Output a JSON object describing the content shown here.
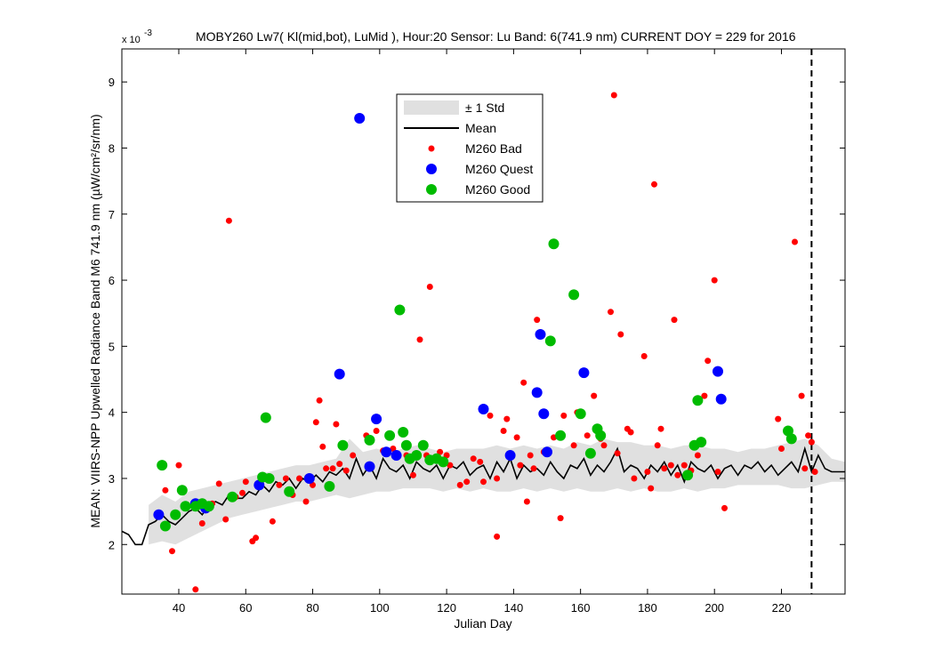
{
  "chart_data": {
    "type": "scatter",
    "title": "MOBY260   Lw7( Kl(mid,bot), LuMid ),   Hour:20 Sensor: Lu Band: 6(741.9 nm)   CURRENT DOY = 229 for 2016",
    "xlabel": "Julian Day",
    "ylabel": "MEAN: VIIRS-NPP Upwelled Radiance Band M6 741.9 nm (µW/cm²/sr/nm)",
    "y_exponent_label": "x 10",
    "y_exponent_power": "-3",
    "xlim": [
      23,
      239
    ],
    "ylim": [
      1.25,
      9.5
    ],
    "xticks": [
      40,
      60,
      80,
      100,
      120,
      140,
      160,
      180,
      200,
      220
    ],
    "yticks": [
      2,
      3,
      4,
      5,
      6,
      7,
      8,
      9
    ],
    "current_doy": 229,
    "grid": false,
    "legend_position": "top-center",
    "legend": {
      "std": "± 1 Std",
      "mean": "Mean",
      "bad": "M260 Bad",
      "quest": "M260 Quest",
      "good": "M260 Good"
    },
    "colors": {
      "bad": "#ff0000",
      "quest": "#0000ff",
      "good": "#00bb00",
      "mean": "#000000",
      "std": "#e0e0e0"
    },
    "mean": {
      "x": [
        23,
        25,
        27,
        29,
        31,
        33,
        35,
        37,
        39,
        41,
        43,
        45,
        47,
        49,
        51,
        53,
        55,
        57,
        59,
        61,
        63,
        65,
        67,
        69,
        71,
        73,
        75,
        77,
        79,
        81,
        83,
        85,
        87,
        89,
        91,
        93,
        95,
        97,
        99,
        101,
        103,
        105,
        107,
        109,
        111,
        113,
        115,
        117,
        119,
        121,
        123,
        125,
        127,
        129,
        131,
        133,
        135,
        137,
        139,
        141,
        143,
        145,
        147,
        149,
        151,
        153,
        155,
        157,
        159,
        161,
        163,
        165,
        167,
        169,
        171,
        173,
        175,
        177,
        179,
        181,
        183,
        185,
        187,
        189,
        191,
        193,
        195,
        197,
        199,
        201,
        203,
        205,
        207,
        209,
        211,
        213,
        215,
        217,
        219,
        221,
        223,
        225,
        227,
        229,
        231,
        233,
        235,
        237,
        239
      ],
      "y": [
        2.2,
        2.15,
        2.0,
        2.0,
        2.3,
        2.35,
        2.45,
        2.35,
        2.3,
        2.4,
        2.5,
        2.55,
        2.45,
        2.6,
        2.65,
        2.6,
        2.75,
        2.7,
        2.7,
        2.8,
        2.75,
        2.9,
        2.8,
        2.95,
        2.9,
        3.0,
        2.85,
        3.0,
        2.95,
        3.05,
        2.95,
        3.1,
        3.05,
        3.15,
        3.0,
        3.3,
        3.05,
        3.2,
        3.0,
        3.3,
        3.15,
        3.1,
        3.2,
        3.0,
        3.25,
        3.15,
        3.1,
        3.2,
        3.0,
        3.2,
        3.15,
        3.25,
        3.05,
        3.15,
        3.2,
        3.0,
        3.25,
        3.1,
        3.3,
        3.0,
        3.2,
        3.1,
        3.15,
        3.05,
        3.25,
        3.1,
        3.0,
        3.2,
        3.15,
        3.3,
        3.05,
        3.2,
        3.1,
        3.25,
        3.45,
        3.1,
        3.2,
        3.15,
        3.0,
        3.2,
        3.1,
        3.25,
        3.05,
        3.2,
        2.95,
        3.25,
        3.15,
        3.1,
        3.2,
        3.0,
        3.15,
        3.2,
        3.05,
        3.2,
        3.15,
        3.25,
        3.1,
        3.2,
        3.05,
        3.15,
        3.25,
        3.1,
        3.45,
        3.1,
        3.35,
        3.15,
        3.1,
        3.1,
        3.1
      ]
    },
    "std_band": {
      "x": [
        31,
        35,
        39,
        43,
        47,
        51,
        55,
        59,
        63,
        67,
        71,
        75,
        79,
        83,
        87,
        91,
        95,
        99,
        103,
        107,
        111,
        115,
        119,
        123,
        127,
        131,
        135,
        139,
        143,
        147,
        151,
        155,
        159,
        163,
        167,
        171,
        175,
        179,
        183,
        187,
        191,
        195,
        199,
        203,
        207,
        211,
        215,
        219,
        223,
        227,
        231,
        235,
        239
      ],
      "upper": [
        2.6,
        2.75,
        2.65,
        2.8,
        2.85,
        2.9,
        2.95,
        3.0,
        3.05,
        3.1,
        3.15,
        3.2,
        3.2,
        3.25,
        3.3,
        3.6,
        3.4,
        3.45,
        3.4,
        3.45,
        3.5,
        3.45,
        3.4,
        3.45,
        3.45,
        3.45,
        3.5,
        3.45,
        3.5,
        3.45,
        3.5,
        3.45,
        3.55,
        3.5,
        3.6,
        3.55,
        3.55,
        3.5,
        3.5,
        3.45,
        3.5,
        3.5,
        3.45,
        3.45,
        3.4,
        3.45,
        3.45,
        3.5,
        3.55,
        3.6,
        3.5,
        3.3,
        3.25
      ],
      "lower": [
        2.0,
        2.05,
        2.0,
        2.1,
        2.2,
        2.3,
        2.4,
        2.45,
        2.5,
        2.55,
        2.6,
        2.65,
        2.65,
        2.7,
        2.75,
        2.7,
        2.75,
        2.8,
        2.8,
        2.85,
        2.85,
        2.85,
        2.8,
        2.85,
        2.8,
        2.85,
        2.8,
        2.8,
        2.85,
        2.8,
        2.85,
        2.8,
        2.85,
        2.8,
        2.8,
        2.85,
        2.8,
        2.85,
        2.8,
        2.8,
        2.85,
        2.8,
        2.85,
        2.85,
        2.9,
        2.9,
        2.9,
        2.9,
        2.85,
        2.85,
        2.9,
        2.95,
        2.95
      ]
    },
    "series": [
      {
        "name": "M260 Bad",
        "marker": "bad",
        "points": [
          [
            36,
            2.82
          ],
          [
            38,
            1.9
          ],
          [
            40,
            3.2
          ],
          [
            45,
            1.32
          ],
          [
            47,
            2.32
          ],
          [
            50,
            2.62
          ],
          [
            52,
            2.92
          ],
          [
            54,
            2.38
          ],
          [
            55,
            6.9
          ],
          [
            57,
            2.72
          ],
          [
            59,
            2.78
          ],
          [
            60,
            2.95
          ],
          [
            62,
            2.05
          ],
          [
            63,
            2.1
          ],
          [
            66,
            3.0
          ],
          [
            68,
            2.35
          ],
          [
            70,
            2.9
          ],
          [
            72,
            3.0
          ],
          [
            74,
            2.75
          ],
          [
            76,
            3.0
          ],
          [
            78,
            2.65
          ],
          [
            80,
            2.9
          ],
          [
            81,
            3.85
          ],
          [
            82,
            4.18
          ],
          [
            83,
            3.48
          ],
          [
            84,
            3.15
          ],
          [
            86,
            3.15
          ],
          [
            87,
            3.82
          ],
          [
            88,
            3.22
          ],
          [
            90,
            3.12
          ],
          [
            92,
            3.35
          ],
          [
            96,
            3.65
          ],
          [
            99,
            3.72
          ],
          [
            101,
            3.42
          ],
          [
            104,
            3.45
          ],
          [
            108,
            3.35
          ],
          [
            110,
            3.05
          ],
          [
            112,
            5.1
          ],
          [
            114,
            3.35
          ],
          [
            115,
            5.9
          ],
          [
            118,
            3.4
          ],
          [
            120,
            3.35
          ],
          [
            121,
            3.2
          ],
          [
            124,
            2.9
          ],
          [
            126,
            2.95
          ],
          [
            128,
            3.3
          ],
          [
            130,
            3.25
          ],
          [
            131,
            2.95
          ],
          [
            133,
            3.95
          ],
          [
            135,
            3.0
          ],
          [
            135,
            2.12
          ],
          [
            137,
            3.72
          ],
          [
            138,
            3.9
          ],
          [
            139,
            3.35
          ],
          [
            141,
            3.62
          ],
          [
            142,
            3.2
          ],
          [
            143,
            4.45
          ],
          [
            144,
            2.65
          ],
          [
            145,
            3.35
          ],
          [
            146,
            3.15
          ],
          [
            147,
            5.4
          ],
          [
            149,
            3.4
          ],
          [
            152,
            3.62
          ],
          [
            154,
            2.4
          ],
          [
            155,
            3.95
          ],
          [
            158,
            3.5
          ],
          [
            159,
            4.0
          ],
          [
            162,
            3.65
          ],
          [
            164,
            4.25
          ],
          [
            166,
            3.6
          ],
          [
            167,
            3.5
          ],
          [
            169,
            5.52
          ],
          [
            170,
            8.8
          ],
          [
            171,
            3.38
          ],
          [
            172,
            5.18
          ],
          [
            174,
            3.75
          ],
          [
            175,
            3.7
          ],
          [
            176,
            3.0
          ],
          [
            179,
            4.85
          ],
          [
            180,
            3.1
          ],
          [
            181,
            2.85
          ],
          [
            182,
            7.45
          ],
          [
            183,
            3.5
          ],
          [
            184,
            3.75
          ],
          [
            185,
            3.15
          ],
          [
            187,
            3.2
          ],
          [
            188,
            5.4
          ],
          [
            189,
            3.05
          ],
          [
            191,
            3.2
          ],
          [
            193,
            3.12
          ],
          [
            195,
            3.35
          ],
          [
            197,
            4.25
          ],
          [
            198,
            4.78
          ],
          [
            200,
            6.0
          ],
          [
            201,
            3.1
          ],
          [
            203,
            2.55
          ],
          [
            219,
            3.9
          ],
          [
            220,
            3.45
          ],
          [
            224,
            6.58
          ],
          [
            226,
            4.25
          ],
          [
            227,
            3.15
          ],
          [
            228,
            3.65
          ],
          [
            229,
            3.55
          ],
          [
            230,
            3.1
          ]
        ]
      },
      {
        "name": "M260 Quest",
        "marker": "quest",
        "points": [
          [
            34,
            2.45
          ],
          [
            45,
            2.62
          ],
          [
            48,
            2.55
          ],
          [
            64,
            2.9
          ],
          [
            79,
            3.0
          ],
          [
            88,
            4.58
          ],
          [
            94,
            8.45
          ],
          [
            97,
            3.18
          ],
          [
            99,
            3.9
          ],
          [
            102,
            3.4
          ],
          [
            105,
            3.35
          ],
          [
            131,
            4.05
          ],
          [
            139,
            3.35
          ],
          [
            147,
            4.3
          ],
          [
            148,
            5.18
          ],
          [
            149,
            3.98
          ],
          [
            150,
            3.4
          ],
          [
            161,
            4.6
          ],
          [
            201,
            4.62
          ],
          [
            202,
            4.2
          ]
        ]
      },
      {
        "name": "M260 Good",
        "marker": "good",
        "points": [
          [
            35,
            3.2
          ],
          [
            36,
            2.28
          ],
          [
            39,
            2.45
          ],
          [
            41,
            2.82
          ],
          [
            42,
            2.58
          ],
          [
            45,
            2.58
          ],
          [
            47,
            2.62
          ],
          [
            49,
            2.58
          ],
          [
            56,
            2.72
          ],
          [
            65,
            3.02
          ],
          [
            66,
            3.92
          ],
          [
            67,
            3.0
          ],
          [
            73,
            2.8
          ],
          [
            85,
            2.88
          ],
          [
            89,
            3.5
          ],
          [
            97,
            3.58
          ],
          [
            103,
            3.65
          ],
          [
            106,
            5.55
          ],
          [
            107,
            3.7
          ],
          [
            108,
            3.5
          ],
          [
            109,
            3.3
          ],
          [
            111,
            3.35
          ],
          [
            113,
            3.5
          ],
          [
            115,
            3.28
          ],
          [
            117,
            3.3
          ],
          [
            119,
            3.25
          ],
          [
            151,
            5.08
          ],
          [
            152,
            6.55
          ],
          [
            154,
            3.65
          ],
          [
            158,
            5.78
          ],
          [
            160,
            3.98
          ],
          [
            163,
            3.38
          ],
          [
            165,
            3.75
          ],
          [
            166,
            3.65
          ],
          [
            192,
            3.05
          ],
          [
            194,
            3.5
          ],
          [
            195,
            4.18
          ],
          [
            196,
            3.55
          ],
          [
            222,
            3.72
          ],
          [
            223,
            3.6
          ]
        ]
      }
    ]
  }
}
